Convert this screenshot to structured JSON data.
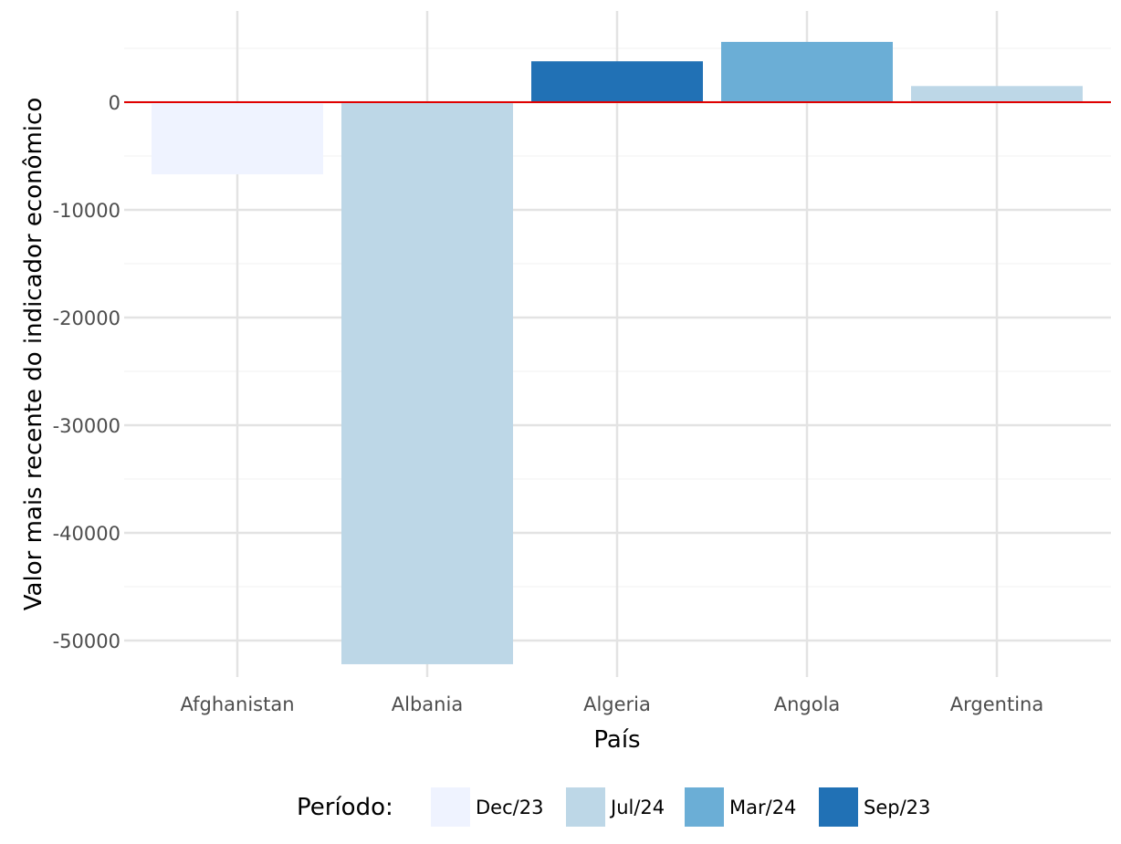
{
  "chart_data": {
    "type": "bar",
    "title": "",
    "xlabel": "País",
    "ylabel": "Valor mais recente do indicador econômico",
    "categories": [
      "Afghanistan",
      "Albania",
      "Algeria",
      "Angola",
      "Argentina"
    ],
    "values": [
      -6700,
      -52200,
      3800,
      5600,
      1500
    ],
    "periods": [
      "Dec/23",
      "Jul/24",
      "Sep/23",
      "Mar/24",
      "Jul/24"
    ],
    "ylim": [
      -54500,
      8500
    ],
    "yticks": [
      0,
      -10000,
      -20000,
      -30000,
      -40000,
      -50000
    ],
    "ytick_labels": [
      "0",
      "-10000",
      "-20000",
      "-30000",
      "-40000",
      "-50000"
    ],
    "reference_line": {
      "y": 0,
      "color": "#e00000"
    },
    "grid": true,
    "legend": {
      "title": "Período:",
      "position": "bottom",
      "entries": [
        {
          "label": "Dec/23",
          "color": "#eff3ff"
        },
        {
          "label": "Jul/24",
          "color": "#bdd7e7"
        },
        {
          "label": "Mar/24",
          "color": "#6baed6"
        },
        {
          "label": "Sep/23",
          "color": "#2171b5"
        }
      ]
    }
  }
}
